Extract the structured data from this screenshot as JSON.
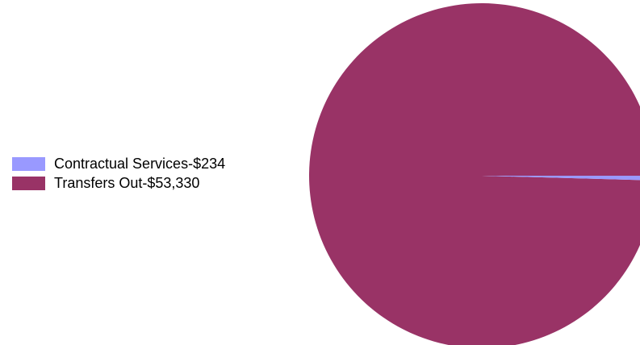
{
  "chart_data": {
    "type": "pie",
    "title": "",
    "legend_position": "left",
    "slices": [
      {
        "label": "Contractual Services-$234",
        "value": 234,
        "color": "#9999ff"
      },
      {
        "label": "Transfers Out-$53,330",
        "value": 53330,
        "color": "#993366"
      }
    ]
  }
}
